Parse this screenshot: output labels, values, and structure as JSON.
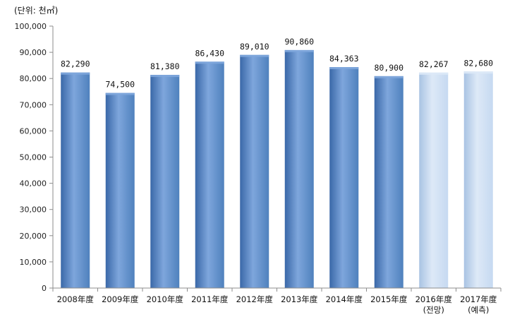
{
  "chart_data": {
    "type": "bar",
    "unit_label": "(단위: 천㎡)",
    "title": "",
    "xlabel": "",
    "ylabel": "",
    "categories": [
      "2008年度",
      "2009年度",
      "2010年度",
      "2011年度",
      "2012年度",
      "2013年度",
      "2014年度",
      "2015年度",
      "2016年度",
      "2017年度"
    ],
    "category_notes": [
      "",
      "",
      "",
      "",
      "",
      "",
      "",
      "",
      "(전망)",
      "(예측)"
    ],
    "values": [
      82290,
      74500,
      81380,
      86430,
      89010,
      90860,
      84363,
      80900,
      82267,
      82680
    ],
    "value_labels": [
      "82,290",
      "74,500",
      "81,380",
      "86,430",
      "89,010",
      "90,860",
      "84,363",
      "80,900",
      "82,267",
      "82,680"
    ],
    "bar_kind": [
      "actual",
      "actual",
      "actual",
      "actual",
      "actual",
      "actual",
      "actual",
      "actual",
      "forecast",
      "forecast"
    ],
    "ylim": [
      0,
      100000
    ],
    "y_ticks": [
      0,
      10000,
      20000,
      30000,
      40000,
      50000,
      60000,
      70000,
      80000,
      90000,
      100000
    ],
    "y_tick_labels": [
      "0",
      "10,000",
      "20,000",
      "30,000",
      "40,000",
      "50,000",
      "60,000",
      "70,000",
      "80,000",
      "90,000",
      "100,000"
    ],
    "grid": false,
    "legend": "none",
    "colors": {
      "actual": "#4f81bd",
      "actual_light": "#7ea6dc",
      "actual_dark": "#3a68a8",
      "forecast": "#c6d9f1",
      "forecast_light": "#dde9f7",
      "forecast_dark": "#a9c3e3",
      "axis": "#8c8c8c"
    }
  }
}
